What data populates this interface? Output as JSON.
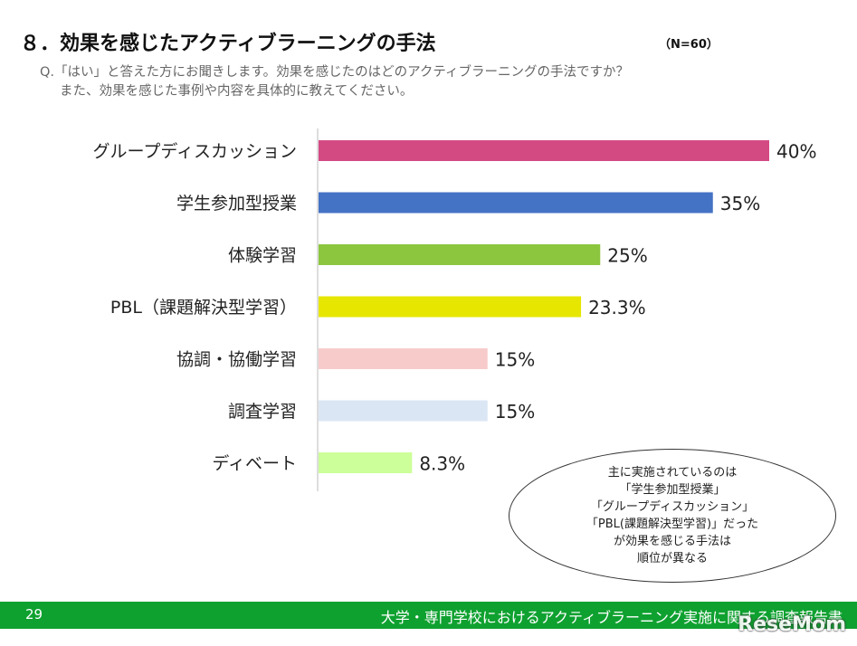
{
  "header": {
    "title": "８．効果を感じたアクティブラーニングの手法",
    "sample_size": "（N=60）",
    "question_line1": "Q.「はい」と答えた方にお聞きします。効果を感じたのはどのアクティブラーニングの手法ですか？",
    "question_line2": "また、効果を感じた事例や内容を具体的に教えてください。"
  },
  "chart_data": {
    "type": "bar",
    "orientation": "horizontal",
    "categories": [
      "グループディスカッション",
      "学生参加型授業",
      "体験学習",
      "PBL（課題解決型学習）",
      "協調・協働学習",
      "調査学習",
      "ディベート"
    ],
    "values": [
      40,
      35,
      25,
      23.3,
      15,
      15,
      8.3
    ],
    "value_labels": [
      "40%",
      "35%",
      "25%",
      "23.3%",
      "15%",
      "15%",
      "8.3%"
    ],
    "colors": [
      "#d34a83",
      "#4472c4",
      "#8cc63f",
      "#e6e600",
      "#f8cbcb",
      "#dbe6f4",
      "#ccff99"
    ],
    "xlim": [
      0,
      40
    ],
    "grid": false
  },
  "note": {
    "lines": [
      "主に実施されているのは",
      "「学生参加型授業」",
      "「グループディスカッション」",
      "「PBL(課題解決型学習)」だった",
      "が効果を感じる手法は",
      "順位が異なる"
    ]
  },
  "footer": {
    "page_number": "29",
    "report_title": "大学・専門学校におけるアクティブラーニング実施に関する調査報告書",
    "logo": "ReseMom",
    "bar_color": "#0fa130"
  }
}
